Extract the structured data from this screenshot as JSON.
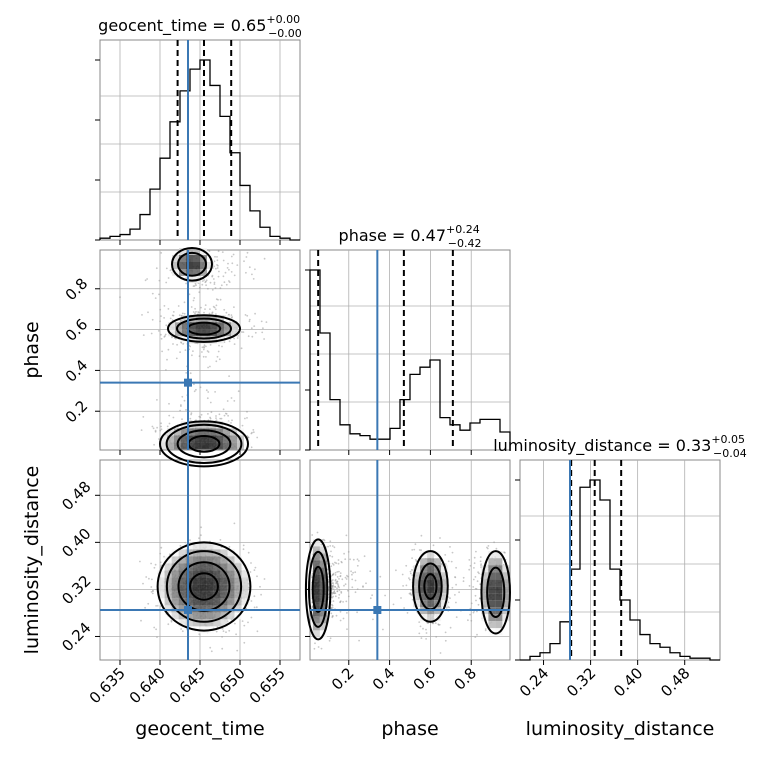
{
  "chart_data": {
    "type": "corner",
    "parameters": [
      "geocent_time",
      "phase",
      "luminosity_distance"
    ],
    "truth": {
      "geocent_time": 0.6435,
      "phase": 0.34,
      "luminosity_distance": 0.285
    },
    "titles": {
      "geocent_time": {
        "name": "geocent_time",
        "median": "0.65",
        "plus": "+0.00",
        "minus": "−0.00"
      },
      "phase": {
        "name": "phase",
        "median": "0.47",
        "plus": "+0.24",
        "minus": "−0.42"
      },
      "luminosity_distance": {
        "name": "luminosity_distance",
        "median": "0.33",
        "plus": "+0.05",
        "minus": "−0.04"
      }
    },
    "ranges": {
      "geocent_time": [
        0.6325,
        0.6575
      ],
      "phase": [
        0.01,
        0.99
      ],
      "luminosity_distance": [
        0.2,
        0.54
      ]
    },
    "ticks": {
      "geocent_time": [
        "0.635",
        "0.640",
        "0.645",
        "0.650",
        "0.655"
      ],
      "phase": [
        "0.2",
        "0.4",
        "0.6",
        "0.8"
      ],
      "luminosity_distance": [
        "0.24",
        "0.32",
        "0.40",
        "0.48"
      ]
    },
    "quantiles": {
      "geocent_time": [
        0.6422,
        0.6455,
        0.6489
      ],
      "phase": [
        0.05,
        0.47,
        0.71
      ],
      "luminosity_distance": [
        0.287,
        0.327,
        0.372
      ]
    },
    "histograms": {
      "geocent_time": [
        1,
        2,
        3,
        6,
        14,
        28,
        45,
        65,
        82,
        94,
        99,
        85,
        68,
        48,
        30,
        16,
        7,
        2,
        1,
        0
      ],
      "phase": [
        100,
        65,
        28,
        14,
        9,
        8,
        6,
        6,
        12,
        28,
        42,
        46,
        50,
        18,
        14,
        11,
        15,
        17,
        17,
        10
      ],
      "luminosity_distance": [
        0,
        2,
        4,
        9,
        21,
        50,
        95,
        99,
        88,
        50,
        33,
        22,
        14,
        9,
        7,
        4,
        2,
        1,
        1,
        0
      ]
    },
    "grid": true,
    "truth_color": "#3b78b4"
  }
}
